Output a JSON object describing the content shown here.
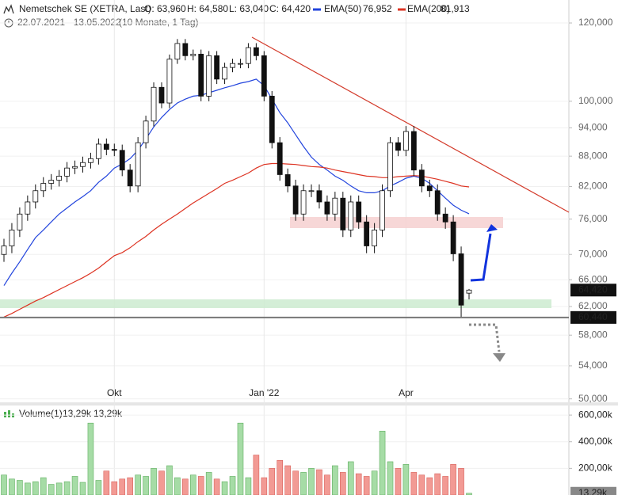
{
  "chart_data": {
    "type": "candlestick",
    "instrument": "Nemetschek SE (XETRA, Last)",
    "ohlc_labels": [
      "O: 63,960",
      "H: 64,580",
      "L: 63,040",
      "C: 64,420"
    ],
    "date_range": "22.07.2021 - 13.05.2022",
    "period": "(10 Monate, 1 Tag)",
    "log_scale": true,
    "grid": true,
    "ylim": [
      49600,
      126600
    ],
    "yticks": [
      {
        "value": 50000,
        "label": "50,000"
      },
      {
        "value": 54000,
        "label": "54,000"
      },
      {
        "value": 58000,
        "label": "58,000"
      },
      {
        "value": 62000,
        "label": "62,000"
      },
      {
        "value": 66000,
        "label": "66,000"
      },
      {
        "value": 70000,
        "label": "70,000"
      },
      {
        "value": 76000,
        "label": "76,000"
      },
      {
        "value": 82000,
        "label": "82,000"
      },
      {
        "value": 88000,
        "label": "88,000"
      },
      {
        "value": 94000,
        "label": "94,000"
      },
      {
        "value": 100000,
        "label": "100,000"
      },
      {
        "value": 120000,
        "label": "120,000"
      }
    ],
    "price_markers": [
      {
        "value": 64420,
        "label": "64,420"
      },
      {
        "value": 60440,
        "label": "60,440"
      }
    ],
    "categories": [
      null,
      null,
      null,
      null,
      null,
      null,
      null,
      null,
      null,
      null,
      null,
      null,
      null,
      null,
      "Okt",
      null,
      null,
      null,
      null,
      null,
      null,
      null,
      null,
      null,
      null,
      null,
      null,
      null,
      null,
      null,
      null,
      null,
      null,
      "Jan '22",
      null,
      null,
      null,
      null,
      null,
      null,
      null,
      null,
      null,
      null,
      null,
      null,
      null,
      null,
      null,
      null,
      null,
      "Apr",
      null,
      null,
      null,
      null,
      null,
      null,
      null,
      null
    ],
    "open": [
      70000,
      71400,
      74100,
      76900,
      79100,
      81200,
      82600,
      83200,
      84000,
      85600,
      85900,
      86700,
      87500,
      90500,
      89400,
      89200,
      85200,
      82100,
      90800,
      95500,
      103300,
      99600,
      110300,
      114400,
      111200,
      111600,
      101200,
      111200,
      105300,
      108200,
      109200,
      109200,
      113300,
      111200,
      101200,
      90800,
      84300,
      82100,
      76900,
      81200,
      81200,
      79100,
      76900,
      79800,
      74100,
      79100,
      75500,
      71400,
      74100,
      81200,
      90800,
      89200,
      93200,
      85200,
      82100,
      81200,
      76900,
      75500,
      70100,
      63960
    ],
    "high": [
      72600,
      75300,
      78100,
      80300,
      82400,
      83800,
      84400,
      85200,
      86800,
      87100,
      87900,
      88700,
      91700,
      91700,
      90600,
      90400,
      86400,
      92000,
      96700,
      104500,
      104500,
      111500,
      115600,
      115600,
      112800,
      112800,
      112400,
      112400,
      109400,
      110400,
      110400,
      114500,
      114500,
      112400,
      102400,
      92000,
      85500,
      83300,
      82400,
      82400,
      82400,
      80300,
      81000,
      81000,
      80300,
      80300,
      76700,
      75300,
      82400,
      92000,
      92000,
      94400,
      94400,
      86400,
      83300,
      82400,
      78100,
      76700,
      71300,
      64580
    ],
    "low": [
      68800,
      70200,
      72900,
      75700,
      77900,
      80000,
      81400,
      82000,
      82800,
      84400,
      84700,
      85500,
      86300,
      88200,
      88000,
      84000,
      80900,
      80900,
      89600,
      94300,
      98400,
      98400,
      109100,
      110000,
      110000,
      100000,
      100000,
      104100,
      104100,
      107000,
      108000,
      108000,
      110000,
      100000,
      89600,
      83100,
      80900,
      75700,
      75700,
      80000,
      77900,
      75700,
      75700,
      72900,
      72900,
      74300,
      70200,
      70200,
      72900,
      80000,
      88000,
      88000,
      84000,
      80900,
      80000,
      75700,
      74300,
      68900,
      60440,
      63040
    ],
    "close": [
      71400,
      74100,
      76900,
      79100,
      81200,
      82600,
      83200,
      84000,
      85600,
      85900,
      86700,
      87500,
      90500,
      89400,
      89200,
      85200,
      82100,
      90800,
      95500,
      103300,
      99600,
      110300,
      114400,
      111200,
      111600,
      101200,
      111200,
      105300,
      108200,
      109200,
      109200,
      113300,
      111200,
      101200,
      90800,
      84300,
      82100,
      76900,
      81200,
      81200,
      79100,
      76900,
      79800,
      74100,
      79100,
      75500,
      71400,
      74100,
      81200,
      90800,
      89200,
      93200,
      85200,
      82100,
      81200,
      76900,
      75500,
      70100,
      62200,
      64420
    ],
    "series": [
      {
        "name": "EMA(50)",
        "legend_value": "76,952",
        "color": "#2244dd",
        "values": [
          65100,
          67000,
          68800,
          70800,
          72800,
          74100,
          75500,
          76900,
          78000,
          79100,
          80100,
          81200,
          82800,
          84000,
          85600,
          86400,
          87500,
          89200,
          91600,
          94200,
          96300,
          98100,
          99600,
          100500,
          101200,
          101400,
          102000,
          102600,
          103200,
          103700,
          104300,
          104700,
          105300,
          103700,
          100500,
          97400,
          95100,
          92500,
          90000,
          87800,
          86300,
          85200,
          84000,
          83200,
          82100,
          81200,
          80800,
          80800,
          81200,
          82100,
          82800,
          83600,
          84000,
          83600,
          82600,
          81200,
          79800,
          78500,
          77600,
          76952
        ]
      },
      {
        "name": "EMA(200)",
        "legend_value": "81,913",
        "color": "#dd3322",
        "values": [
          60500,
          61000,
          61600,
          62200,
          62800,
          63300,
          63900,
          64500,
          65100,
          65700,
          66300,
          67000,
          67800,
          68800,
          69800,
          70300,
          71100,
          72100,
          73000,
          74100,
          75100,
          76000,
          76900,
          77900,
          78900,
          79800,
          80700,
          81600,
          82600,
          83200,
          83900,
          84600,
          85600,
          86300,
          86500,
          86500,
          86400,
          86300,
          86100,
          85900,
          85800,
          85600,
          85200,
          84900,
          84600,
          84300,
          84000,
          83900,
          83700,
          83700,
          83900,
          84000,
          84100,
          84000,
          83700,
          83400,
          83000,
          82600,
          82100,
          81913
        ]
      }
    ],
    "volume": {
      "name": "Volume(1)",
      "legend_values": [
        "13,29k",
        "13,29k"
      ],
      "last_label": "13,29k",
      "ylim": [
        0,
        672000
      ],
      "yticks": [
        {
          "value": 200000,
          "label": "200,00k"
        },
        {
          "value": 400000,
          "label": "400,00k"
        },
        {
          "value": 600000,
          "label": "600,00k"
        }
      ],
      "values": [
        150000,
        120000,
        110000,
        90000,
        100000,
        130000,
        80000,
        90000,
        100000,
        140000,
        95000,
        540000,
        110000,
        180000,
        100000,
        120000,
        130000,
        150000,
        140000,
        200000,
        180000,
        220000,
        130000,
        120000,
        150000,
        140000,
        170000,
        120000,
        100000,
        140000,
        540000,
        130000,
        300000,
        130000,
        200000,
        260000,
        220000,
        180000,
        170000,
        200000,
        190000,
        150000,
        220000,
        170000,
        250000,
        160000,
        140000,
        180000,
        480000,
        250000,
        200000,
        230000,
        170000,
        150000,
        130000,
        160000,
        140000,
        230000,
        200000,
        13290
      ]
    }
  }
}
